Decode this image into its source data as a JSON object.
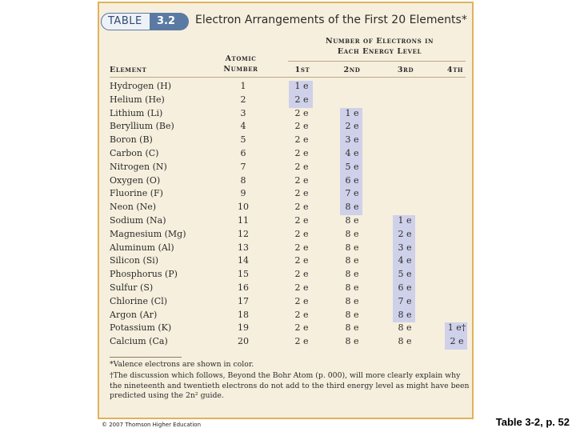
{
  "table": {
    "badge_label": "TABLE",
    "badge_number": "3.2",
    "title": "Electron Arrangements of the First 20 Elements*"
  },
  "headers": {
    "group": "Number of Electrons in Each Energy Level",
    "element": "Element",
    "atomic_number": "Atomic Number",
    "levels": [
      "1st",
      "2nd",
      "3rd",
      "4th"
    ]
  },
  "rows": [
    {
      "element": "Hydrogen (H)",
      "z": "1",
      "l1": "1 e",
      "l2": "",
      "l3": "",
      "l4": ""
    },
    {
      "element": "Helium (He)",
      "z": "2",
      "l1": "2 e",
      "l2": "",
      "l3": "",
      "l4": ""
    },
    {
      "element": "Lithium (Li)",
      "z": "3",
      "l1": "2 e",
      "l2": "1 e",
      "l3": "",
      "l4": ""
    },
    {
      "element": "Beryllium (Be)",
      "z": "4",
      "l1": "2 e",
      "l2": "2 e",
      "l3": "",
      "l4": ""
    },
    {
      "element": "Boron (B)",
      "z": "5",
      "l1": "2 e",
      "l2": "3 e",
      "l3": "",
      "l4": ""
    },
    {
      "element": "Carbon (C)",
      "z": "6",
      "l1": "2 e",
      "l2": "4 e",
      "l3": "",
      "l4": ""
    },
    {
      "element": "Nitrogen (N)",
      "z": "7",
      "l1": "2 e",
      "l2": "5 e",
      "l3": "",
      "l4": ""
    },
    {
      "element": "Oxygen (O)",
      "z": "8",
      "l1": "2 e",
      "l2": "6 e",
      "l3": "",
      "l4": ""
    },
    {
      "element": "Fluorine (F)",
      "z": "9",
      "l1": "2 e",
      "l2": "7 e",
      "l3": "",
      "l4": ""
    },
    {
      "element": "Neon (Ne)",
      "z": "10",
      "l1": "2 e",
      "l2": "8 e",
      "l3": "",
      "l4": ""
    },
    {
      "element": "Sodium (Na)",
      "z": "11",
      "l1": "2 e",
      "l2": "8 e",
      "l3": "1 e",
      "l4": ""
    },
    {
      "element": "Magnesium (Mg)",
      "z": "12",
      "l1": "2 e",
      "l2": "8 e",
      "l3": "2 e",
      "l4": ""
    },
    {
      "element": "Aluminum (Al)",
      "z": "13",
      "l1": "2 e",
      "l2": "8 e",
      "l3": "3 e",
      "l4": ""
    },
    {
      "element": "Silicon (Si)",
      "z": "14",
      "l1": "2 e",
      "l2": "8 e",
      "l3": "4 e",
      "l4": ""
    },
    {
      "element": "Phosphorus (P)",
      "z": "15",
      "l1": "2 e",
      "l2": "8 e",
      "l3": "5 e",
      "l4": ""
    },
    {
      "element": "Sulfur (S)",
      "z": "16",
      "l1": "2 e",
      "l2": "8 e",
      "l3": "6 e",
      "l4": ""
    },
    {
      "element": "Chlorine (Cl)",
      "z": "17",
      "l1": "2 e",
      "l2": "8 e",
      "l3": "7 e",
      "l4": ""
    },
    {
      "element": "Argon (Ar)",
      "z": "18",
      "l1": "2 e",
      "l2": "8 e",
      "l3": "8 e",
      "l4": ""
    },
    {
      "element": "Potassium (K)",
      "z": "19",
      "l1": "2 e",
      "l2": "8 e",
      "l3": "8 e",
      "l4": "1 e†"
    },
    {
      "element": "Calcium (Ca)",
      "z": "20",
      "l1": "2 e",
      "l2": "8 e",
      "l3": "8 e",
      "l4": "2 e"
    }
  ],
  "footnotes": {
    "valence": "*Valence electrons are shown in color.",
    "dagger": "†The discussion which follows, Beyond the Bohr Atom (p. 000), will more clearly explain why the nineteenth and twentieth electrons do not add to the third energy level as might have been predicted using the 2n² guide."
  },
  "copyright": "© 2007 Thomson Higher Education",
  "caption": "Table 3-2, p. 52",
  "colors": {
    "frame_border": "#e0b25a",
    "frame_fill": "#f6efdd",
    "badge_blue": "#5b7aa3",
    "valence_highlight": "#cfd1ea"
  }
}
